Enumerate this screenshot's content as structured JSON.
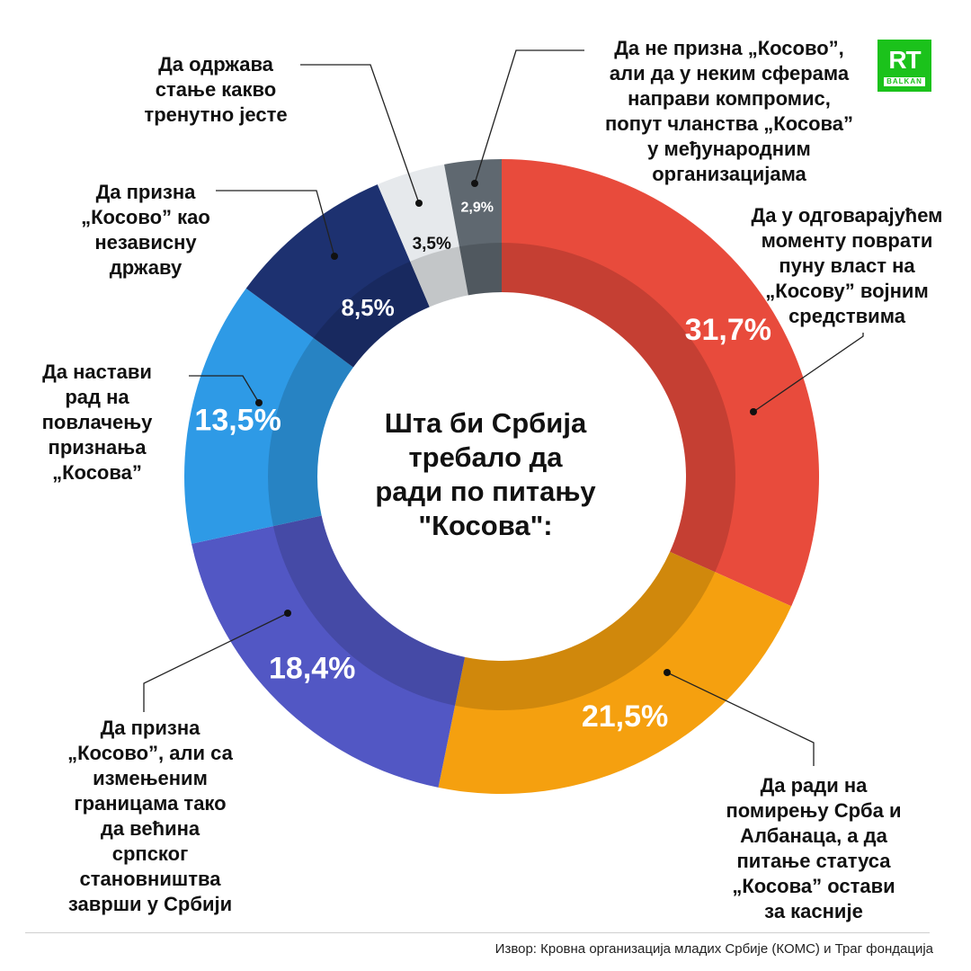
{
  "chart_data": {
    "type": "pie",
    "title": "Шта би Србија\nтребало да\nради по питању\n\"Косова\":",
    "series": [
      {
        "name": "Да у одговарајућем\nмоменту поврати\nпуну власт на\n„Косову” војним\nсредствима",
        "value": 31.7,
        "value_label": "31,7%",
        "color": "#e84b3c"
      },
      {
        "name": "Да ради на\nпомирењу Срба и\nАлбанаца, а да\nпитање статуса\n„Косова” остави\nза касније",
        "value": 21.5,
        "value_label": "21,5%",
        "color": "#f5a00f"
      },
      {
        "name": "Да призна\n„Косово”, али са\nизмењеним\nграницама тако\nда већина\nсрпског\nстановништва\nзаврши у Србији",
        "value": 18.4,
        "value_label": "18,4%",
        "color": "#5257c4"
      },
      {
        "name": "Да настави\nрад на\nповлачењу\nпризнања\n„Косова”",
        "value": 13.5,
        "value_label": "13,5%",
        "color": "#2e9ae6"
      },
      {
        "name": "Да призна\n„Косово” као\nнезависну\nдржаву",
        "value": 8.5,
        "value_label": "8,5%",
        "color": "#1d3170"
      },
      {
        "name": "Да одржава\nстање какво\nтренутно јесте",
        "value": 3.5,
        "value_label": "3,5%",
        "color": "#e6e9ec"
      },
      {
        "name": "Да не призна „Косово”,\nали да у неким сферама\nнаправи компромис,\nпопут чланства „Косова”\nу међународним\nорганизацијама",
        "value": 2.9,
        "value_label": "2,9%",
        "color": "#5f6870"
      }
    ]
  },
  "logo": {
    "text": "RT",
    "sub": "BALKAN"
  },
  "source": "Извор: Кровна организација младих Србије (КОМС) и Траг фондација"
}
